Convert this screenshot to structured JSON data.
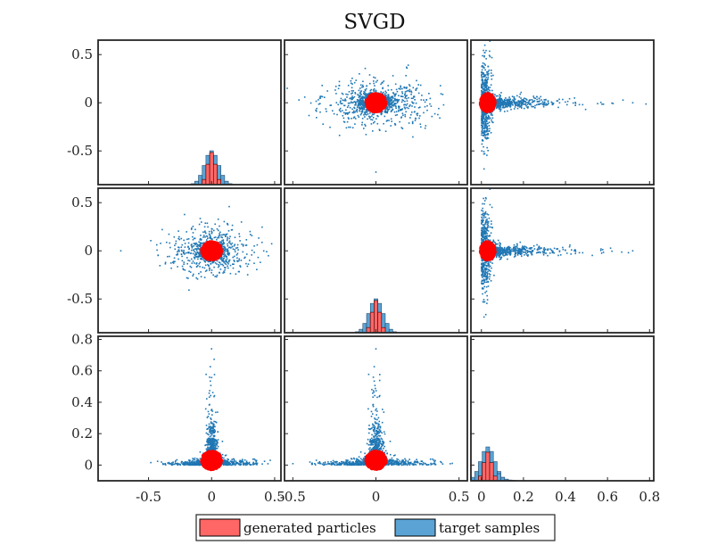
{
  "chart_data": {
    "type": "scatter",
    "title": "SVGD",
    "layout": "3x3 pairplot (off-diagonal: scatter of particles and target samples; diagonal: histograms)",
    "series": [
      {
        "name": "generated particles",
        "color": "#ff0000",
        "fill": "#ff6666",
        "x_center": 0.0,
        "y_center": 0.0,
        "spread": 0.04,
        "diag_hist_peak": 0.0
      },
      {
        "name": "target samples",
        "color": "#1f77b4",
        "fill": "#5aa3d4",
        "x_center": 0.0,
        "y_center": 0.0,
        "spread": 0.1,
        "diag_hist_peak": 0.0
      }
    ],
    "panel_axes": {
      "row_ylim": [
        [
          -0.85,
          0.65
        ],
        [
          -0.85,
          0.65
        ],
        [
          -0.1,
          0.82
        ]
      ],
      "col_xlim": [
        [
          -0.9,
          0.55
        ],
        [
          -0.55,
          0.55
        ],
        [
          -0.05,
          0.82
        ]
      ]
    },
    "y_ticks_rows_1_2": [
      {
        "value": 0.5,
        "label": "0.5"
      },
      {
        "value": 0,
        "label": "0"
      },
      {
        "value": -0.5,
        "label": "-0.5"
      }
    ],
    "y_ticks_row_3": [
      {
        "value": 0.8,
        "label": "0.8"
      },
      {
        "value": 0.6,
        "label": "0.6"
      },
      {
        "value": 0.4,
        "label": "0.4"
      },
      {
        "value": 0.2,
        "label": "0.2"
      },
      {
        "value": 0,
        "label": "0"
      }
    ],
    "x_ticks_col_1": [
      {
        "value": -0.5,
        "label": "-0.5"
      },
      {
        "value": 0,
        "label": "0"
      },
      {
        "value": 0.5,
        "label": "0.5"
      }
    ],
    "x_ticks_col_2": [
      {
        "value": -0.5,
        "label": "-0.5"
      },
      {
        "value": 0,
        "label": "0"
      },
      {
        "value": 0.5,
        "label": "0.5"
      }
    ],
    "x_ticks_col_3": [
      {
        "value": 0,
        "label": "0"
      },
      {
        "value": 0.2,
        "label": "0.2"
      },
      {
        "value": 0.4,
        "label": "0.4"
      },
      {
        "value": 0.6,
        "label": "0.6"
      },
      {
        "value": 0.8,
        "label": "0.8"
      }
    ],
    "legend": {
      "placement": "bottom-center",
      "entries": [
        "generated particles",
        "target samples"
      ]
    },
    "grid": false
  }
}
